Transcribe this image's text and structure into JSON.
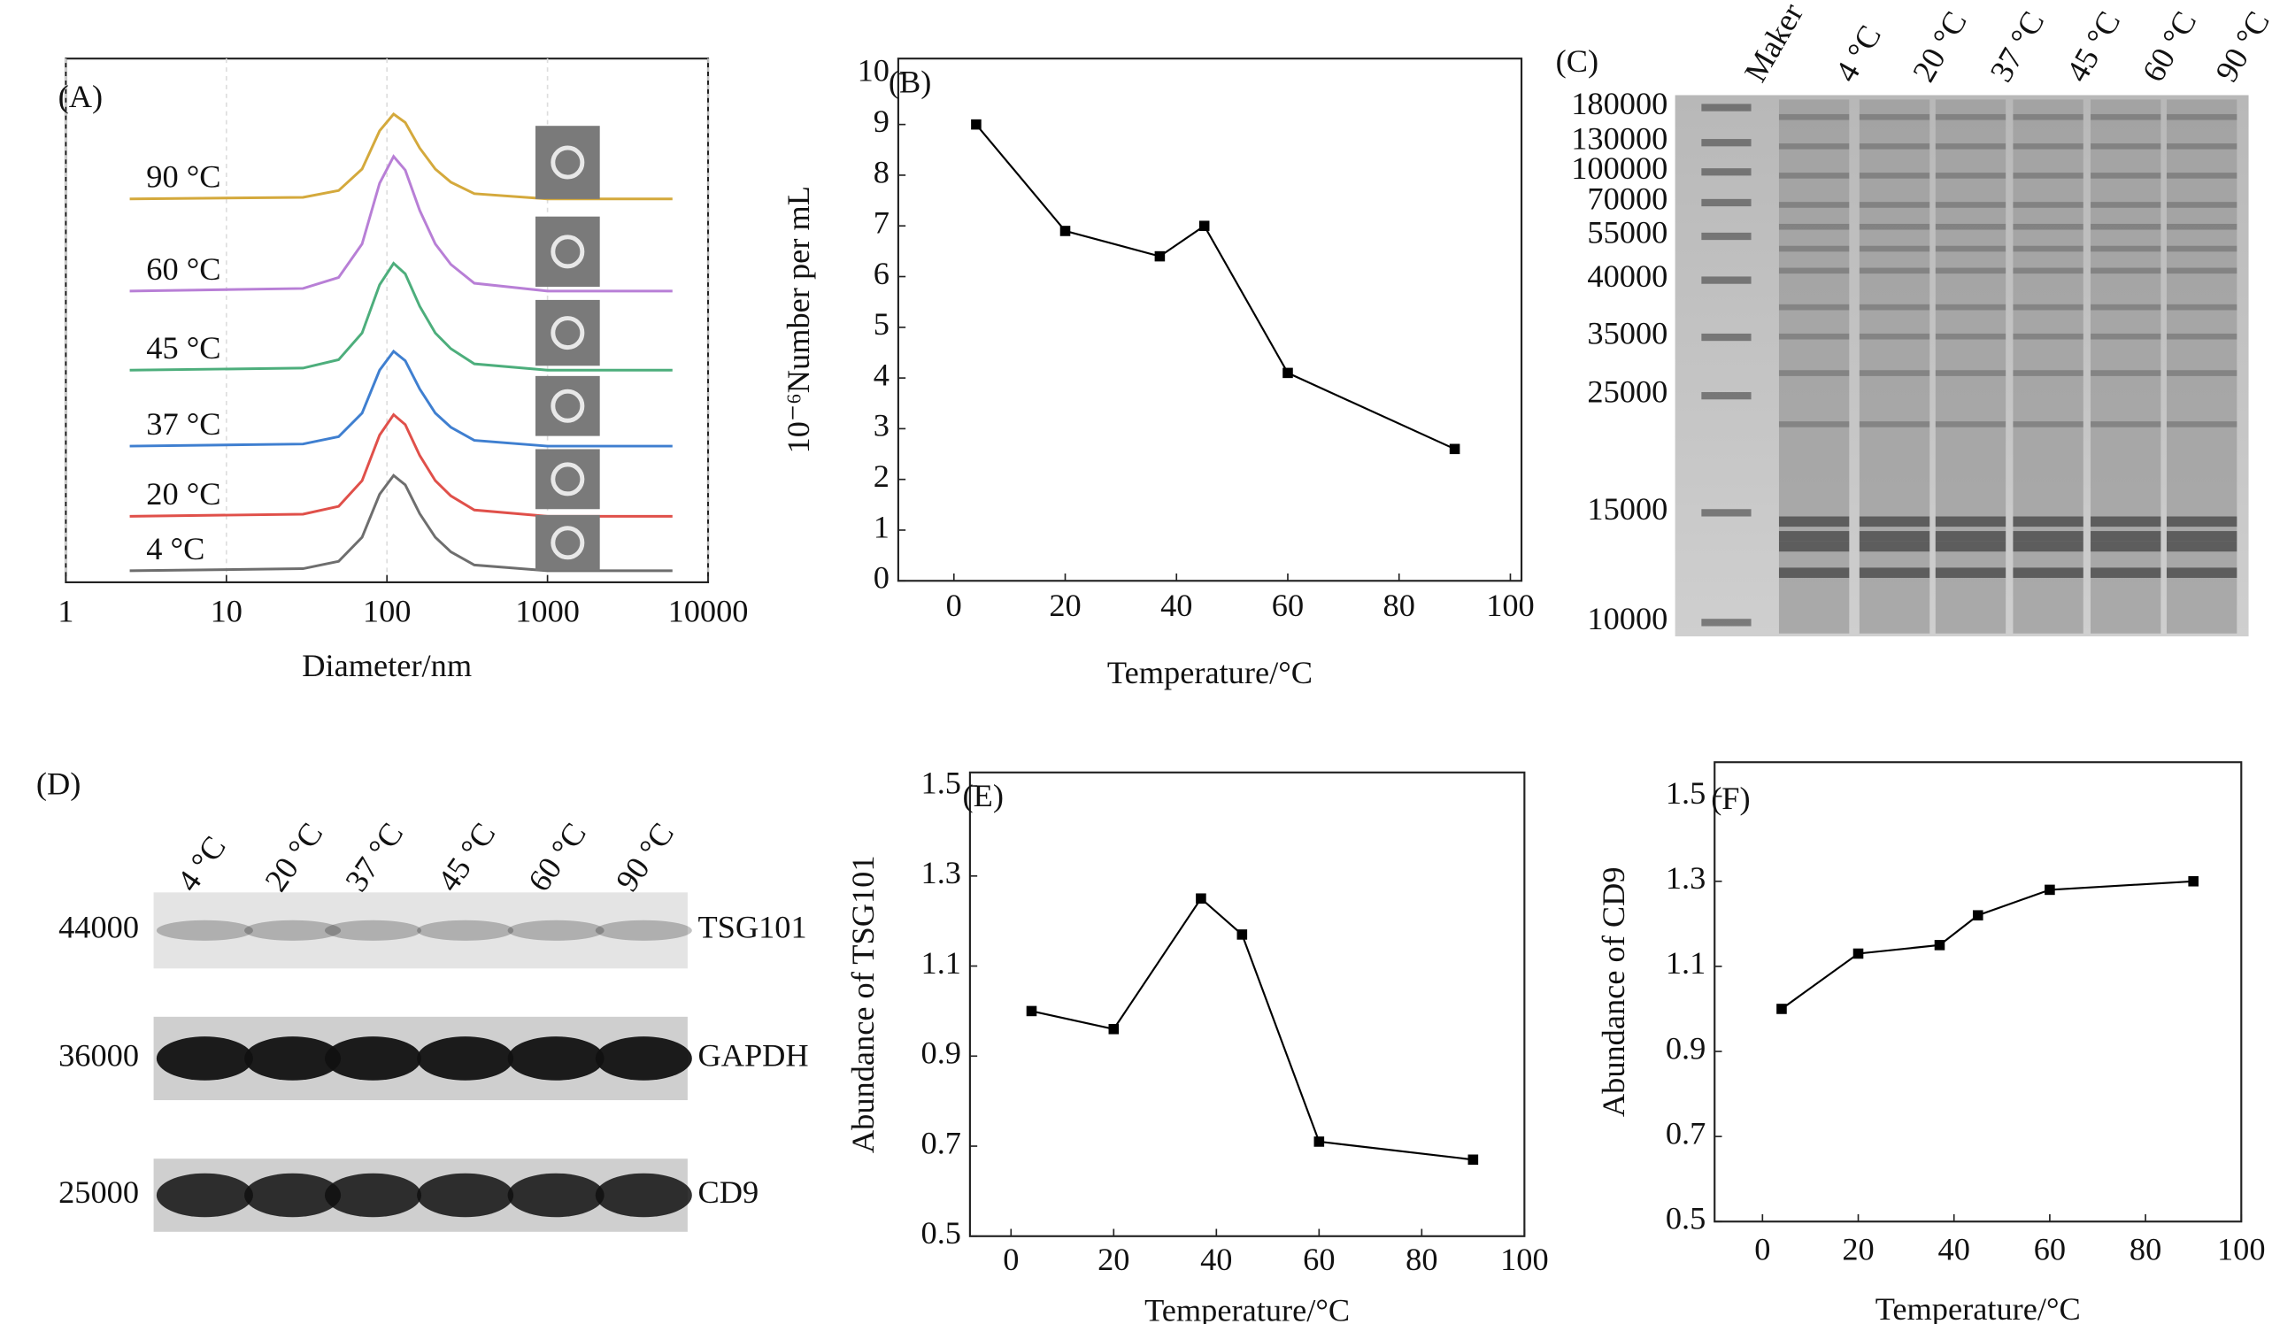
{
  "chart_data": [
    {
      "type": "line",
      "label": "(A)",
      "xlabel": "Diameter/nm",
      "log_x": true,
      "grid": true,
      "xlim": [
        1,
        10000
      ],
      "xticks": [
        1,
        10,
        100,
        1000,
        10000
      ],
      "ylim": [
        0,
        100
      ],
      "x": [
        2.5,
        30,
        50,
        70,
        90,
        110,
        130,
        160,
        200,
        250,
        350,
        1000,
        6000
      ],
      "series": [
        {
          "name": "90 °C",
          "color": "#d4a93c",
          "values": [
            73.2,
            73.5,
            74.8,
            78.9,
            86.2,
            89.4,
            87.8,
            82.9,
            78.9,
            76.4,
            74.2,
            73.2,
            73.2
          ]
        },
        {
          "name": "60 °C",
          "color": "#b87fd6",
          "values": [
            55.6,
            56.1,
            58.2,
            64.6,
            76.2,
            81.3,
            78.7,
            71.0,
            64.6,
            60.7,
            57.1,
            55.6,
            55.6
          ]
        },
        {
          "name": "45 °C",
          "color": "#4dae7c",
          "values": [
            40.5,
            40.9,
            42.5,
            47.6,
            56.8,
            60.9,
            58.9,
            52.7,
            47.6,
            44.6,
            41.7,
            40.5,
            40.5
          ]
        },
        {
          "name": "37 °C",
          "color": "#3f7fd0",
          "values": [
            26,
            26.4,
            27.8,
            32.3,
            40.5,
            44.1,
            42.3,
            36.9,
            32.3,
            29.6,
            27.1,
            26,
            26
          ]
        },
        {
          "name": "20 °C",
          "color": "#e0504a",
          "values": [
            12.6,
            13.0,
            14.5,
            19.4,
            28.1,
            32.0,
            30.1,
            24.2,
            19.4,
            16.5,
            13.8,
            12.6,
            12.6
          ]
        },
        {
          "name": "4 °C",
          "color": "#6e6e6e",
          "values": [
            2.2,
            2.6,
            4.0,
            8.6,
            16.8,
            20.4,
            18.6,
            13.1,
            8.6,
            5.8,
            3.3,
            2.2,
            2.2
          ]
        }
      ]
    },
    {
      "type": "line",
      "label": "(B)",
      "xlabel": "Temperature/°C",
      "ylabel": "10⁻⁶Number per mL",
      "xlim": [
        -10,
        102
      ],
      "xticks": [
        0,
        20,
        40,
        60,
        80,
        100
      ],
      "ylim": [
        0,
        10.3
      ],
      "yticks": [
        0,
        1,
        2,
        3,
        4,
        5,
        6,
        7,
        8,
        9,
        10
      ],
      "x": [
        4,
        20,
        37,
        45,
        60,
        90
      ],
      "color": "#000000",
      "values": [
        9,
        6.9,
        6.4,
        7,
        4.1,
        2.6
      ]
    },
    {
      "type": "line",
      "label": "(E)",
      "xlabel": "Temperature/°C",
      "ylabel": "Abundance of TSG101",
      "xlim": [
        -8,
        100
      ],
      "xticks": [
        0,
        20,
        40,
        60,
        80,
        100
      ],
      "ylim": [
        0.5,
        1.53
      ],
      "yticks": [
        0.5,
        0.7,
        0.9,
        1.1,
        1.3,
        1.5
      ],
      "x": [
        4,
        20,
        37,
        45,
        60,
        90
      ],
      "color": "#000000",
      "values": [
        1.0,
        0.96,
        1.25,
        1.17,
        0.71,
        0.67
      ]
    },
    {
      "type": "line",
      "label": "(F)",
      "xlabel": "Temperature/°C",
      "ylabel": "Abundance of CD9",
      "xlim": [
        -10,
        100
      ],
      "xticks": [
        0,
        20,
        40,
        60,
        80,
        100
      ],
      "ylim": [
        0.5,
        1.58
      ],
      "yticks": [
        0.5,
        0.7,
        0.9,
        1.1,
        1.3,
        1.5
      ],
      "x": [
        4,
        20,
        37,
        45,
        60,
        90
      ],
      "color": "#000000",
      "values": [
        1.0,
        1.13,
        1.15,
        1.22,
        1.28,
        1.3
      ]
    }
  ],
  "gel": {
    "label": "(C)",
    "lanes": [
      "Maker",
      "4 °C",
      "20 °C",
      "37 °C",
      "45 °C",
      "60 °C",
      "90 °C"
    ],
    "markers": [
      180000,
      130000,
      100000,
      70000,
      55000,
      40000,
      35000,
      25000,
      15000,
      10000
    ]
  },
  "blot": {
    "label": "(D)",
    "lanes": [
      "4 °C",
      "20 °C",
      "37 °C",
      "45 °C",
      "60 °C",
      "90 °C"
    ],
    "rows": [
      {
        "size": 44000,
        "protein": "TSG101"
      },
      {
        "size": 36000,
        "protein": "GAPDH"
      },
      {
        "size": 25000,
        "protein": "CD9"
      }
    ]
  }
}
